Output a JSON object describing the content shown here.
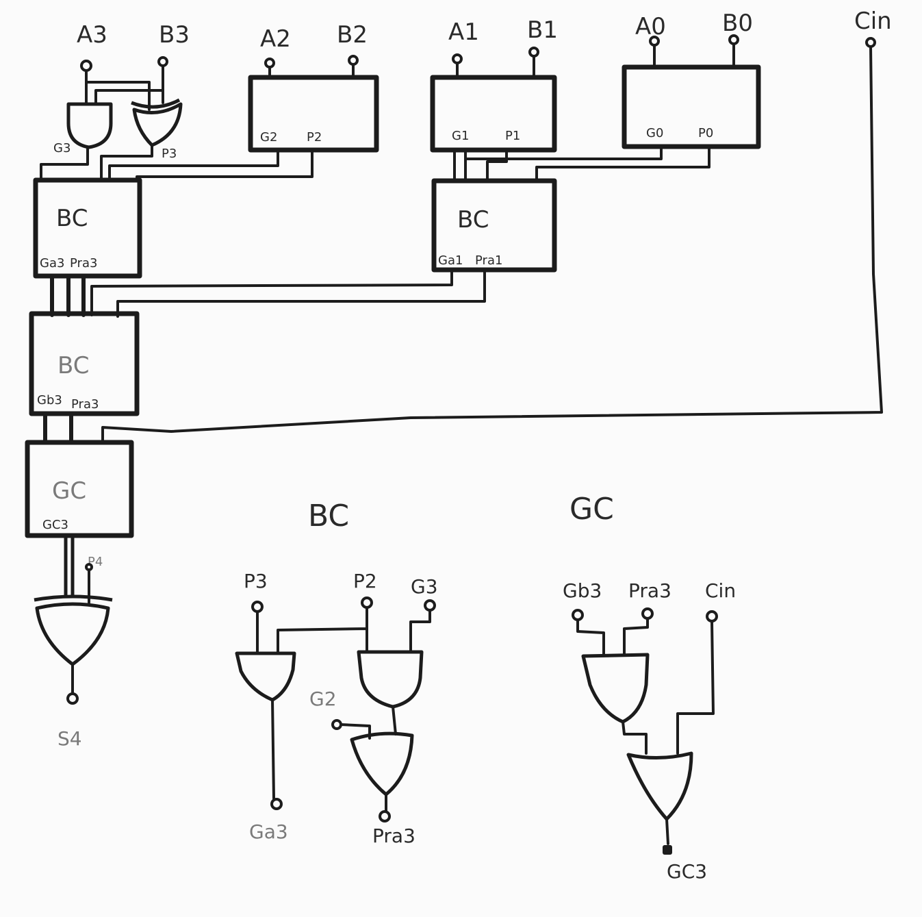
{
  "inputs": {
    "a3": "A3",
    "b3": "B3",
    "a2": "A2",
    "b2": "B2",
    "a1": "A1",
    "b1": "B1",
    "a0": "A0",
    "b0": "B0",
    "cin": "Cin"
  },
  "top_gate_labels": {
    "g3": "G3",
    "p3": "P3"
  },
  "blocks": {
    "block2": {
      "g": "G2",
      "p": "P2"
    },
    "block1": {
      "g": "G1",
      "p": "P1"
    },
    "block0": {
      "g": "G0",
      "p": "P0"
    },
    "bc_top": {
      "name": "BC",
      "out_g": "Ga3",
      "out_p": "Pra3"
    },
    "bc_right": {
      "name": "BC",
      "out_g": "Ga1",
      "out_p": "Pra1"
    },
    "bc_mid": {
      "name": "BC",
      "out_g": "Gb3",
      "out_p": "Pra3"
    },
    "gc": {
      "name": "GC",
      "out": "GC3"
    }
  },
  "sum": {
    "p4": "P4",
    "s4": "S4"
  },
  "detail_bc": {
    "title": "BC",
    "in_p3": "P3",
    "in_p2": "P2",
    "in_g3": "G3",
    "in_g2": "G2",
    "out_g": "Ga3",
    "out_p": "Pra3"
  },
  "detail_gc": {
    "title": "GC",
    "in_gb3": "Gb3",
    "in_pra3": "Pra3",
    "in_cin": "Cin",
    "out": "GC3"
  }
}
